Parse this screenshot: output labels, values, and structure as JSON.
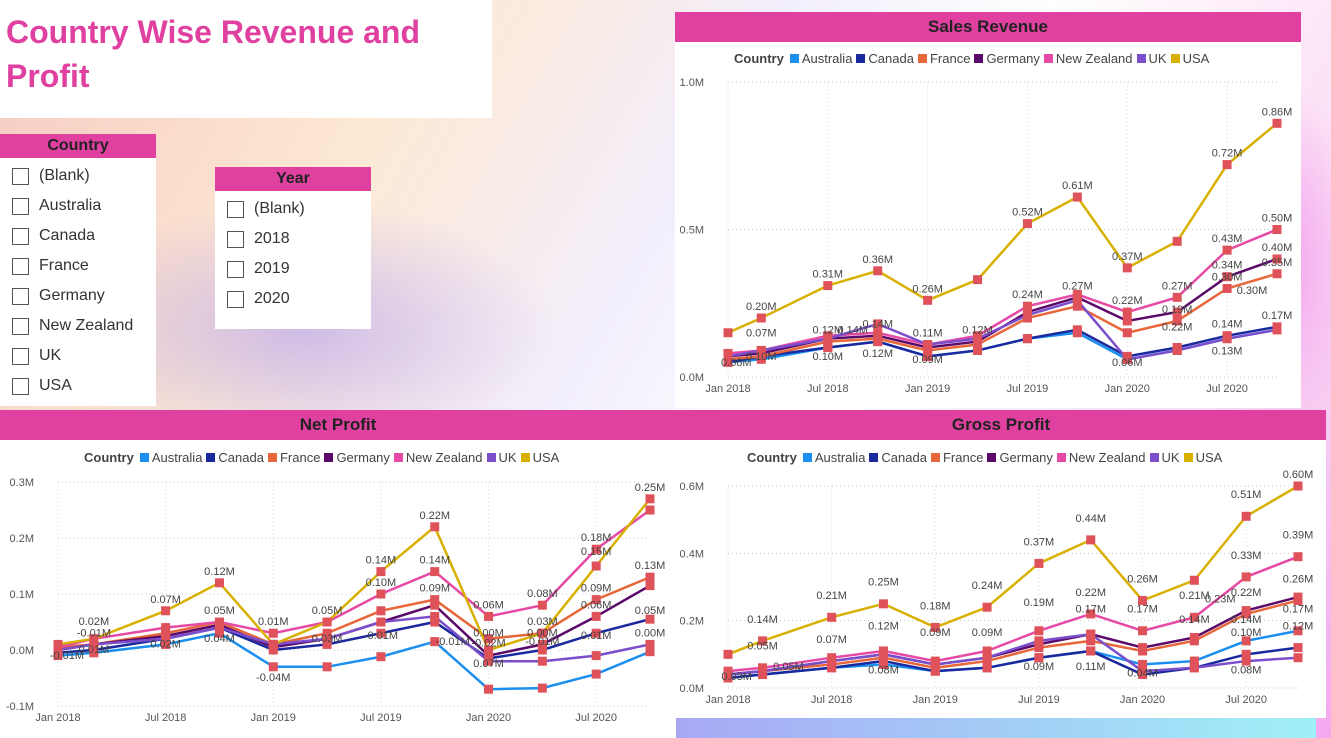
{
  "title": "Country Wise Revenue and Profit",
  "country_slicer": {
    "header": "Country",
    "options": [
      "(Blank)",
      "Australia",
      "Canada",
      "France",
      "Germany",
      "New Zealand",
      "UK",
      "USA"
    ]
  },
  "year_slicer": {
    "header": "Year",
    "options": [
      "(Blank)",
      "2018",
      "2019",
      "2020"
    ]
  },
  "legend_title": "Country",
  "colors": {
    "Australia": "#1b8ff0",
    "Canada": "#1a2a9e",
    "France": "#e8673a",
    "Germany": "#5b0a6a",
    "New Zealand": "#e64aa5",
    "UK": "#7b4fcc",
    "USA": "#d8b000",
    "marker": "#e0525a",
    "accent": "#e040a0"
  },
  "chart_data": [
    {
      "id": "sales",
      "type": "line",
      "title": "Sales Revenue",
      "ylim": [
        0,
        1.0
      ],
      "yticks": [
        "0.0M",
        "0.5M",
        "1.0M"
      ],
      "ytick_values": [
        0,
        0.5,
        1.0
      ],
      "xticks": [
        "Jan 2018",
        "Jul 2018",
        "Jan 2019",
        "Jul 2019",
        "Jan 2020",
        "Jul 2020"
      ],
      "xtick_index": [
        0,
        6,
        12,
        18,
        24,
        30
      ],
      "x_index": [
        0,
        2,
        6,
        9,
        12,
        15,
        18,
        21,
        24,
        27,
        30,
        33
      ],
      "series": [
        {
          "name": "Australia",
          "values": [
            0.05,
            0.06,
            0.1,
            0.12,
            0.07,
            0.09,
            0.13,
            0.15,
            0.06,
            0.09,
            0.13,
            0.16
          ]
        },
        {
          "name": "Canada",
          "values": [
            0.05,
            0.07,
            0.1,
            0.12,
            0.07,
            0.09,
            0.13,
            0.16,
            0.07,
            0.1,
            0.14,
            0.17
          ]
        },
        {
          "name": "France",
          "values": [
            0.06,
            0.07,
            0.12,
            0.13,
            0.09,
            0.11,
            0.2,
            0.24,
            0.15,
            0.19,
            0.3,
            0.35
          ]
        },
        {
          "name": "Germany",
          "values": [
            0.07,
            0.08,
            0.13,
            0.14,
            0.1,
            0.12,
            0.22,
            0.27,
            0.19,
            0.22,
            0.34,
            0.4
          ]
        },
        {
          "name": "New Zealand",
          "values": [
            0.08,
            0.09,
            0.14,
            0.15,
            0.11,
            0.14,
            0.24,
            0.28,
            0.22,
            0.27,
            0.43,
            0.5
          ]
        },
        {
          "name": "UK",
          "values": [
            0.07,
            0.09,
            0.13,
            0.18,
            0.11,
            0.13,
            0.21,
            0.26,
            0.06,
            0.09,
            0.13,
            0.16
          ]
        },
        {
          "name": "USA",
          "values": [
            0.15,
            0.2,
            0.31,
            0.36,
            0.26,
            0.33,
            0.52,
            0.61,
            0.37,
            0.46,
            0.72,
            0.86
          ]
        }
      ],
      "data_labels": [
        {
          "text": "0.86M",
          "x": 33,
          "y": 0.86
        },
        {
          "text": "0.72M",
          "x": 30,
          "y": 0.72
        },
        {
          "text": "0.61M",
          "x": 21,
          "y": 0.61
        },
        {
          "text": "0.52M",
          "x": 18,
          "y": 0.52
        },
        {
          "text": "0.50M",
          "x": 33,
          "y": 0.5
        },
        {
          "text": "0.43M",
          "x": 30,
          "y": 0.43
        },
        {
          "text": "0.40M",
          "x": 33,
          "y": 0.4
        },
        {
          "text": "0.37M",
          "x": 24,
          "y": 0.37
        },
        {
          "text": "0.36M",
          "x": 9,
          "y": 0.36
        },
        {
          "text": "0.35M",
          "x": 33,
          "y": 0.35
        },
        {
          "text": "0.34M",
          "x": 30,
          "y": 0.34
        },
        {
          "text": "0.31M",
          "x": 6,
          "y": 0.31
        },
        {
          "text": "0.30M",
          "x": 30,
          "y": 0.3
        },
        {
          "text": "0.30M",
          "x": 31.5,
          "y": 0.255
        },
        {
          "text": "0.27M",
          "x": 21,
          "y": 0.27
        },
        {
          "text": "0.27M",
          "x": 27,
          "y": 0.27
        },
        {
          "text": "0.26M",
          "x": 12,
          "y": 0.26
        },
        {
          "text": "0.24M",
          "x": 18,
          "y": 0.24
        },
        {
          "text": "0.22M",
          "x": 24,
          "y": 0.22
        },
        {
          "text": "0.22M",
          "x": 27,
          "y": 0.13
        },
        {
          "text": "0.20M",
          "x": 2,
          "y": 0.2
        },
        {
          "text": "0.19M",
          "x": 27,
          "y": 0.19
        },
        {
          "text": "0.17M",
          "x": 33,
          "y": 0.17
        },
        {
          "text": "0.14M",
          "x": 9,
          "y": 0.14
        },
        {
          "text": "0.14M",
          "x": 30,
          "y": 0.14
        },
        {
          "text": "0.14M",
          "x": 7.5,
          "y": 0.12
        },
        {
          "text": "0.13M",
          "x": 30,
          "y": 0.05
        },
        {
          "text": "0.12M",
          "x": 6,
          "y": 0.12
        },
        {
          "text": "0.12M",
          "x": 9,
          "y": 0.04
        },
        {
          "text": "0.12M",
          "x": 15,
          "y": 0.12
        },
        {
          "text": "0.11M",
          "x": 12,
          "y": 0.11
        },
        {
          "text": "0.10M",
          "x": 2,
          "y": 0.03
        },
        {
          "text": "0.10M",
          "x": 6,
          "y": 0.03
        },
        {
          "text": "0.09M",
          "x": 12,
          "y": 0.02
        },
        {
          "text": "0.07M",
          "x": 2,
          "y": 0.11
        },
        {
          "text": "0.06M",
          "x": 0.5,
          "y": 0.01
        },
        {
          "text": "0.06M",
          "x": 24,
          "y": 0.01
        }
      ]
    },
    {
      "id": "net",
      "type": "line",
      "title": "Net Profit",
      "ylim": [
        -0.1,
        0.3
      ],
      "yticks": [
        "-0.1M",
        "0.0M",
        "0.1M",
        "0.2M",
        "0.3M"
      ],
      "ytick_values": [
        -0.1,
        0,
        0.1,
        0.2,
        0.3
      ],
      "xticks": [
        "Jan 2018",
        "Jul 2018",
        "Jan 2019",
        "Jul 2019",
        "Jan 2020",
        "Jul 2020"
      ],
      "xtick_index": [
        0,
        6,
        12,
        18,
        24,
        30
      ],
      "x_index": [
        0,
        2,
        6,
        9,
        12,
        15,
        18,
        21,
        24,
        27,
        30,
        33
      ],
      "series": [
        {
          "name": "Australia",
          "values": [
            -0.01,
            -0.005,
            0.01,
            0.03,
            -0.03,
            -0.03,
            -0.012,
            0.015,
            -0.07,
            -0.068,
            -0.043,
            -0.003
          ]
        },
        {
          "name": "Canada",
          "values": [
            -0.005,
            0.0,
            0.02,
            0.04,
            0.0,
            0.01,
            0.03,
            0.05,
            -0.015,
            0.0,
            0.03,
            0.055
          ]
        },
        {
          "name": "France",
          "values": [
            0.005,
            0.01,
            0.03,
            0.05,
            0.01,
            0.03,
            0.07,
            0.09,
            0.02,
            0.03,
            0.09,
            0.13
          ]
        },
        {
          "name": "Germany",
          "values": [
            0.0,
            0.01,
            0.025,
            0.045,
            0.005,
            0.02,
            0.05,
            0.08,
            -0.01,
            0.01,
            0.06,
            0.115
          ]
        },
        {
          "name": "New Zealand",
          "values": [
            0.005,
            0.02,
            0.04,
            0.05,
            0.03,
            0.05,
            0.1,
            0.14,
            0.06,
            0.08,
            0.18,
            0.25
          ]
        },
        {
          "name": "UK",
          "values": [
            0.0,
            0.01,
            0.02,
            0.04,
            0.01,
            0.02,
            0.05,
            0.06,
            -0.02,
            -0.02,
            -0.01,
            0.01
          ]
        },
        {
          "name": "USA",
          "values": [
            0.01,
            0.02,
            0.07,
            0.12,
            0.01,
            0.05,
            0.14,
            0.22,
            0.0,
            0.03,
            0.15,
            0.27
          ]
        }
      ],
      "data_labels": [
        {
          "text": "0.25M",
          "x": 33,
          "y": 0.27
        },
        {
          "text": "0.22M",
          "x": 21,
          "y": 0.22
        },
        {
          "text": "0.18M",
          "x": 30,
          "y": 0.18
        },
        {
          "text": "0.15M",
          "x": 30,
          "y": 0.155
        },
        {
          "text": "0.14M",
          "x": 18,
          "y": 0.14
        },
        {
          "text": "0.14M",
          "x": 21,
          "y": 0.14
        },
        {
          "text": "0.13M",
          "x": 33,
          "y": 0.13
        },
        {
          "text": "0.12M",
          "x": 9,
          "y": 0.12
        },
        {
          "text": "0.10M",
          "x": 18,
          "y": 0.1
        },
        {
          "text": "0.09M",
          "x": 21,
          "y": 0.09
        },
        {
          "text": "0.09M",
          "x": 30,
          "y": 0.09
        },
        {
          "text": "0.08M",
          "x": 27,
          "y": 0.08
        },
        {
          "text": "0.07M",
          "x": 6,
          "y": 0.07
        },
        {
          "text": "0.07M",
          "x": 24,
          "y": -0.045
        },
        {
          "text": "0.06M",
          "x": 24,
          "y": 0.06
        },
        {
          "text": "0.06M",
          "x": 30,
          "y": 0.06
        },
        {
          "text": "0.05M",
          "x": 9,
          "y": 0.05
        },
        {
          "text": "0.05M",
          "x": 15,
          "y": 0.05
        },
        {
          "text": "0.05M",
          "x": 33,
          "y": 0.05
        },
        {
          "text": "0.04M",
          "x": 9,
          "y": 0.0
        },
        {
          "text": "0.03M",
          "x": 27,
          "y": 0.03
        },
        {
          "text": "0.03M",
          "x": 15,
          "y": 0.0
        },
        {
          "text": "0.02M",
          "x": 2,
          "y": 0.03
        },
        {
          "text": "0.02M",
          "x": 6,
          "y": -0.01
        },
        {
          "text": "0.01M",
          "x": 12,
          "y": 0.03
        },
        {
          "text": "0.01M",
          "x": 2,
          "y": -0.02
        },
        {
          "text": "0.00M",
          "x": 24,
          "y": 0.01
        },
        {
          "text": "0.00M",
          "x": 27,
          "y": 0.01
        },
        {
          "text": "0.00M",
          "x": 33,
          "y": 0.01
        },
        {
          "text": "-0.01M",
          "x": 0.5,
          "y": -0.03
        },
        {
          "text": "-0.01M",
          "x": 2,
          "y": 0.01
        },
        {
          "text": "-0.01M",
          "x": 18,
          "y": 0.005
        },
        {
          "text": "-0.01M",
          "x": 22,
          "y": -0.005
        },
        {
          "text": "-0.01M",
          "x": 27,
          "y": -0.005
        },
        {
          "text": "-0.02M",
          "x": 24,
          "y": -0.008
        },
        {
          "text": "-0.04M",
          "x": 12,
          "y": -0.07
        },
        {
          "text": "0.01M",
          "x": 30,
          "y": 0.005
        }
      ]
    },
    {
      "id": "gross",
      "type": "line",
      "title": "Gross Profit",
      "ylim": [
        0,
        0.6
      ],
      "yticks": [
        "0.0M",
        "0.2M",
        "0.4M",
        "0.6M"
      ],
      "ytick_values": [
        0,
        0.2,
        0.4,
        0.6
      ],
      "xticks": [
        "Jan 2018",
        "Jul 2018",
        "Jan 2019",
        "Jul 2019",
        "Jan 2020",
        "Jul 2020"
      ],
      "xtick_index": [
        0,
        6,
        12,
        18,
        24,
        30
      ],
      "x_index": [
        0,
        2,
        6,
        9,
        12,
        15,
        18,
        21,
        24,
        27,
        30,
        33
      ],
      "series": [
        {
          "name": "Australia",
          "values": [
            0.03,
            0.04,
            0.06,
            0.07,
            0.05,
            0.06,
            0.09,
            0.11,
            0.07,
            0.08,
            0.14,
            0.17
          ]
        },
        {
          "name": "Canada",
          "values": [
            0.03,
            0.04,
            0.06,
            0.08,
            0.05,
            0.06,
            0.09,
            0.11,
            0.04,
            0.06,
            0.1,
            0.12
          ]
        },
        {
          "name": "France",
          "values": [
            0.04,
            0.05,
            0.07,
            0.09,
            0.06,
            0.08,
            0.12,
            0.14,
            0.11,
            0.14,
            0.22,
            0.26
          ]
        },
        {
          "name": "Germany",
          "values": [
            0.04,
            0.05,
            0.08,
            0.1,
            0.07,
            0.09,
            0.13,
            0.16,
            0.12,
            0.15,
            0.23,
            0.27
          ]
        },
        {
          "name": "New Zealand",
          "values": [
            0.05,
            0.06,
            0.09,
            0.11,
            0.08,
            0.11,
            0.17,
            0.22,
            0.17,
            0.21,
            0.33,
            0.39
          ]
        },
        {
          "name": "UK",
          "values": [
            0.04,
            0.05,
            0.08,
            0.1,
            0.07,
            0.09,
            0.14,
            0.16,
            0.05,
            0.06,
            0.08,
            0.09
          ]
        },
        {
          "name": "USA",
          "values": [
            0.1,
            0.14,
            0.21,
            0.25,
            0.18,
            0.24,
            0.37,
            0.44,
            0.26,
            0.32,
            0.51,
            0.6
          ]
        }
      ],
      "data_labels": [
        {
          "text": "0.60M",
          "x": 33,
          "y": 0.6
        },
        {
          "text": "0.51M",
          "x": 30,
          "y": 0.54
        },
        {
          "text": "0.44M",
          "x": 21,
          "y": 0.47
        },
        {
          "text": "0.39M",
          "x": 33,
          "y": 0.42
        },
        {
          "text": "0.37M",
          "x": 18,
          "y": 0.4
        },
        {
          "text": "0.33M",
          "x": 30,
          "y": 0.36
        },
        {
          "text": "0.26M",
          "x": 24,
          "y": 0.29
        },
        {
          "text": "0.26M",
          "x": 33,
          "y": 0.29
        },
        {
          "text": "0.25M",
          "x": 9,
          "y": 0.28
        },
        {
          "text": "0.24M",
          "x": 15,
          "y": 0.27
        },
        {
          "text": "0.23M",
          "x": 28.5,
          "y": 0.23
        },
        {
          "text": "0.22M",
          "x": 21,
          "y": 0.25
        },
        {
          "text": "0.22M",
          "x": 30,
          "y": 0.25
        },
        {
          "text": "0.21M",
          "x": 6,
          "y": 0.24
        },
        {
          "text": "0.21M",
          "x": 27,
          "y": 0.24
        },
        {
          "text": "0.19M",
          "x": 18,
          "y": 0.22
        },
        {
          "text": "0.18M",
          "x": 12,
          "y": 0.21
        },
        {
          "text": "0.17M",
          "x": 21,
          "y": 0.2
        },
        {
          "text": "0.17M",
          "x": 24,
          "y": 0.2
        },
        {
          "text": "0.17M",
          "x": 33,
          "y": 0.2
        },
        {
          "text": "0.14M",
          "x": 2,
          "y": 0.17
        },
        {
          "text": "0.14M",
          "x": 27,
          "y": 0.17
        },
        {
          "text": "0.14M",
          "x": 30,
          "y": 0.17
        },
        {
          "text": "0.12M",
          "x": 9,
          "y": 0.15
        },
        {
          "text": "0.12M",
          "x": 33,
          "y": 0.15
        },
        {
          "text": "0.11M",
          "x": 21,
          "y": 0.03
        },
        {
          "text": "0.10M",
          "x": 30,
          "y": 0.13
        },
        {
          "text": "0.09M",
          "x": 12,
          "y": 0.13
        },
        {
          "text": "0.09M",
          "x": 15,
          "y": 0.13
        },
        {
          "text": "0.09M",
          "x": 18,
          "y": 0.03
        },
        {
          "text": "0.08M",
          "x": 9,
          "y": 0.02
        },
        {
          "text": "0.08M",
          "x": 30,
          "y": 0.02
        },
        {
          "text": "0.07M",
          "x": 6,
          "y": 0.11
        },
        {
          "text": "0.05M",
          "x": 2,
          "y": 0.09
        },
        {
          "text": "0.05M",
          "x": 3.5,
          "y": 0.03
        },
        {
          "text": "0.04M",
          "x": 24,
          "y": 0.01
        },
        {
          "text": "0.03M",
          "x": 0.5,
          "y": 0.0
        }
      ]
    }
  ]
}
